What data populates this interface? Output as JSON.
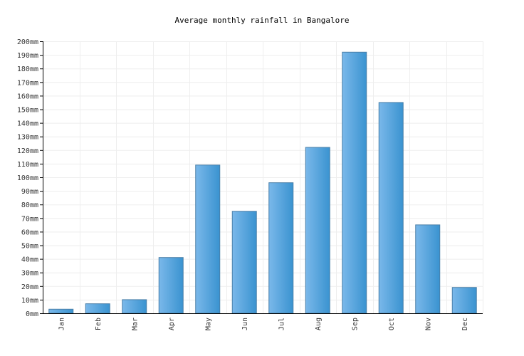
{
  "chart_data": {
    "type": "bar",
    "title": "Average monthly rainfall in Bangalore",
    "xlabel": "",
    "ylabel": "",
    "categories": [
      "Jan",
      "Feb",
      "Mar",
      "Apr",
      "May",
      "Jun",
      "Jul",
      "Aug",
      "Sep",
      "Oct",
      "Nov",
      "Dec"
    ],
    "values": [
      3,
      7,
      10,
      41,
      109,
      75,
      96,
      122,
      192,
      155,
      65,
      19
    ],
    "unit": "mm",
    "ylim": [
      0,
      200
    ],
    "ytick_step": 10,
    "grid": true,
    "bar_color_light": "#7ab8ea",
    "bar_color_dark": "#3a93d0"
  }
}
